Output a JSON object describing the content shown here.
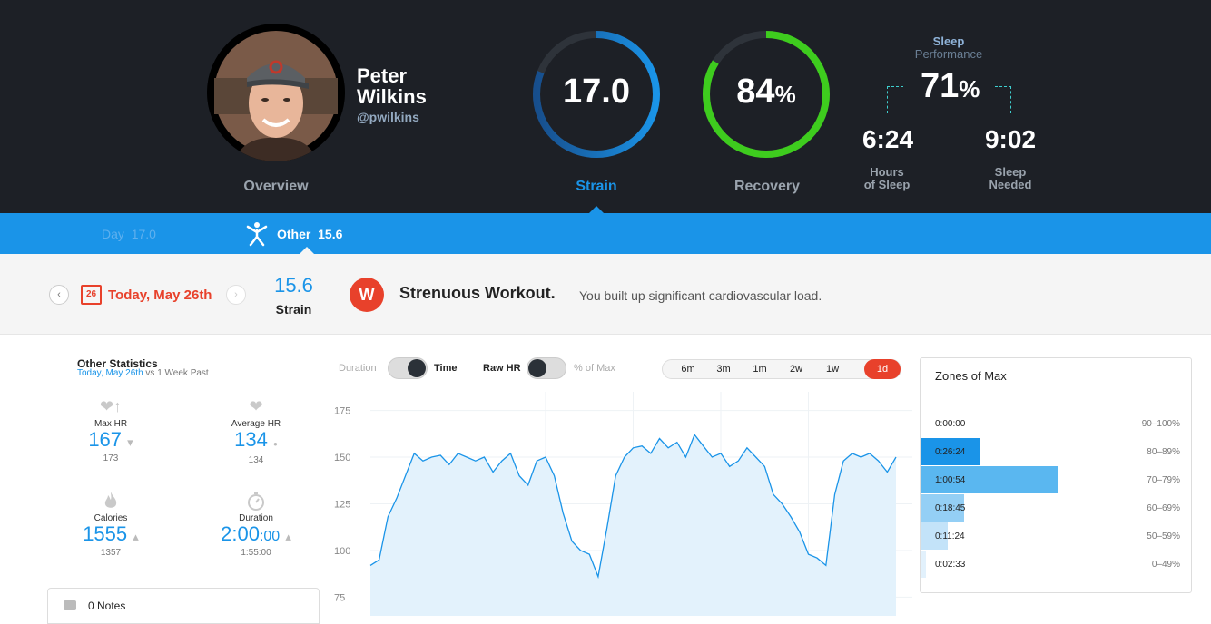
{
  "profile": {
    "first_name": "Peter",
    "last_name": "Wilkins",
    "handle": "@pwilkins",
    "overview_label": "Overview"
  },
  "strain": {
    "value": "17.0",
    "label": "Strain",
    "fraction": 0.81
  },
  "recovery": {
    "value": "84",
    "unit": "%",
    "label": "Recovery",
    "fraction": 0.84
  },
  "sleep": {
    "title": "Sleep",
    "subtitle": "Performance",
    "value": "71",
    "unit": "%",
    "hours_value": "6:24",
    "hours_label_1": "Hours",
    "hours_label_2": "of Sleep",
    "needed_value": "9:02",
    "needed_label_1": "Sleep",
    "needed_label_2": "Needed"
  },
  "tabs": {
    "day_label": "Day",
    "day_value": "17.0",
    "other_label": "Other",
    "other_value": "15.6"
  },
  "summary": {
    "cal_day": "26",
    "date": "Today, May 26th",
    "strain_value": "15.6",
    "strain_label": "Strain",
    "logo": "W",
    "headline": "Strenuous Workout.",
    "description": "You built up significant cardiovascular load."
  },
  "stats": {
    "title": "Other Statistics",
    "sub_highlight": "Today, May 26th",
    "sub_rest": " vs ",
    "sub_end": "1 Week Past",
    "items": [
      {
        "label": "Max HR",
        "value": "167",
        "compare": "173",
        "trend": "▾"
      },
      {
        "label": "Average HR",
        "value": "134",
        "compare": "134",
        "trend": "●"
      },
      {
        "label": "Calories",
        "value": "1555",
        "compare": "1357",
        "trend": "▴"
      },
      {
        "label": "Duration",
        "value": "2:00",
        "value_sub": ":00",
        "compare": "1:55:00",
        "trend": "▴"
      }
    ],
    "notes": "0 Notes"
  },
  "controls": {
    "duration": "Duration",
    "time": "Time",
    "raw_hr": "Raw HR",
    "pct_max": "% of Max",
    "ranges": [
      "6m",
      "3m",
      "1m",
      "2w",
      "1w",
      "1d"
    ],
    "active_range": "1d"
  },
  "chart_data": {
    "type": "area",
    "ylim": [
      65,
      185
    ],
    "yticks": [
      175,
      150,
      125,
      100,
      75
    ],
    "color": "#1a94e8",
    "fill": "#e3f2fc",
    "x": [
      0,
      2,
      4,
      6,
      8,
      10,
      12,
      14,
      16,
      18,
      20,
      22,
      24,
      26,
      28,
      30,
      32,
      34,
      36,
      38,
      40,
      42,
      44,
      46,
      48,
      50,
      52,
      54,
      56,
      58,
      60,
      62,
      64,
      66,
      68,
      70,
      72,
      74,
      76,
      78,
      80,
      82,
      84,
      86,
      88,
      90,
      92,
      94,
      96,
      98,
      100,
      102,
      104,
      106,
      108,
      110,
      112,
      114,
      116,
      118,
      120
    ],
    "y": [
      92,
      95,
      118,
      128,
      140,
      152,
      148,
      150,
      151,
      146,
      152,
      150,
      148,
      150,
      142,
      148,
      152,
      140,
      135,
      148,
      150,
      140,
      120,
      105,
      100,
      98,
      86,
      112,
      140,
      150,
      155,
      156,
      152,
      160,
      155,
      158,
      150,
      162,
      156,
      150,
      152,
      145,
      148,
      155,
      150,
      145,
      130,
      125,
      118,
      110,
      98,
      96,
      92,
      130,
      148,
      152,
      150,
      152,
      148,
      142,
      150
    ],
    "series": [
      {
        "name": "Raw HR"
      }
    ]
  },
  "zones": {
    "title": "Zones of Max",
    "rows": [
      {
        "time": "0:00:00",
        "range": "90–100%",
        "fraction": 0.0,
        "color": "#1a94e8"
      },
      {
        "time": "0:26:24",
        "range": "80–89%",
        "fraction": 0.22,
        "color": "#1a94e8"
      },
      {
        "time": "1:00:54",
        "range": "70–79%",
        "fraction": 0.51,
        "color": "#5ab7f0"
      },
      {
        "time": "0:18:45",
        "range": "60–69%",
        "fraction": 0.16,
        "color": "#94cff5"
      },
      {
        "time": "0:11:24",
        "range": "50–59%",
        "fraction": 0.1,
        "color": "#c3e3f9"
      },
      {
        "time": "0:02:33",
        "range": "0–49%",
        "fraction": 0.02,
        "color": "#e2f1fc"
      }
    ]
  }
}
